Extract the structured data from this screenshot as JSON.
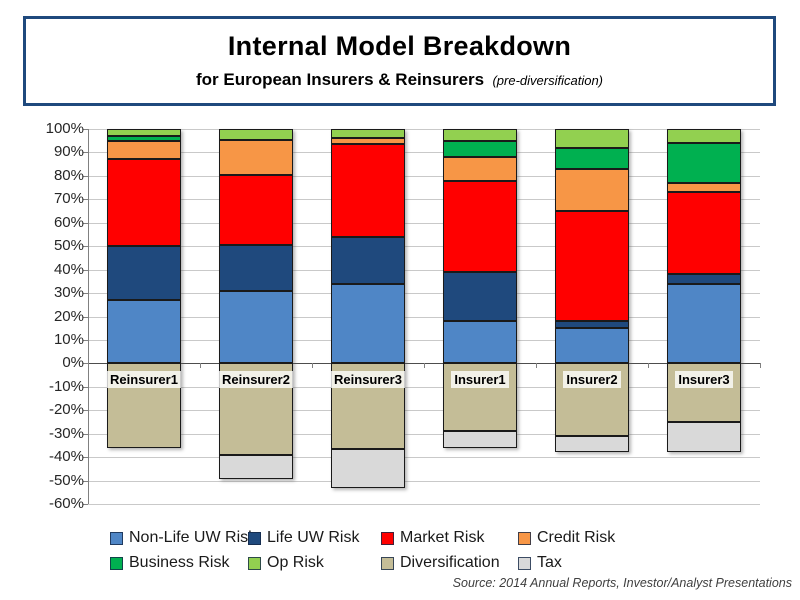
{
  "title_box": {
    "title": "Internal Model Breakdown",
    "subtitle": "for European Insurers & Reinsurers",
    "subtitle_note": "(pre-diversification)"
  },
  "source_note": "Source:  2014 Annual Reports, Investor/Analyst Presentations",
  "colors": {
    "title_border": "#1F497D",
    "gridline": "#C9C9C9",
    "zero_line": "#4d4d4d"
  },
  "chart_data": {
    "type": "bar",
    "stacked": true,
    "grid": true,
    "legend_position": "bottom",
    "categories": [
      "Reinsurer1",
      "Reinsurer2",
      "Reinsurer3",
      "Insurer1",
      "Insurer2",
      "Insurer3"
    ],
    "series": [
      {
        "name": "Non-Life UW Risk",
        "color": "#4F86C6",
        "values": [
          27,
          31,
          34,
          18,
          15,
          34
        ]
      },
      {
        "name": "Life UW Risk",
        "color": "#1F497D",
        "values": [
          23,
          19.5,
          20,
          21,
          3,
          4
        ]
      },
      {
        "name": "Market Risk",
        "color": "#FF0000",
        "values": [
          37,
          30,
          39.5,
          39,
          47,
          35
        ]
      },
      {
        "name": "Credit Risk",
        "color": "#F79646",
        "values": [
          8,
          15,
          2.5,
          10,
          18,
          4
        ]
      },
      {
        "name": "Business Risk",
        "color": "#00B050",
        "values": [
          2,
          0,
          0,
          7,
          9,
          17
        ]
      },
      {
        "name": "Op Risk",
        "color": "#92D050",
        "values": [
          3,
          4.5,
          4,
          5,
          8,
          6
        ]
      },
      {
        "name": "Diversification",
        "color": "#C4BD97",
        "values": [
          -36,
          -39,
          -36.5,
          -29,
          -31,
          -25
        ]
      },
      {
        "name": "Tax",
        "color": "#D9D9D9",
        "values": [
          0,
          -10.5,
          -16.5,
          -7,
          -7,
          -13
        ]
      }
    ],
    "ylim": [
      -60,
      100
    ],
    "y_tick_step": 10,
    "y_tick_labels": [
      "100%",
      "90%",
      "80%",
      "70%",
      "60%",
      "50%",
      "40%",
      "30%",
      "20%",
      "10%",
      "0%",
      "-10%",
      "-20%",
      "-30%",
      "-40%",
      "-50%",
      "-60%"
    ],
    "legend_rows": [
      [
        "Non-Life UW Risk",
        "Life UW Risk",
        "Market Risk",
        "Credit Risk"
      ],
      [
        "Business Risk",
        "Op Risk",
        "Diversification",
        "Tax"
      ]
    ]
  }
}
